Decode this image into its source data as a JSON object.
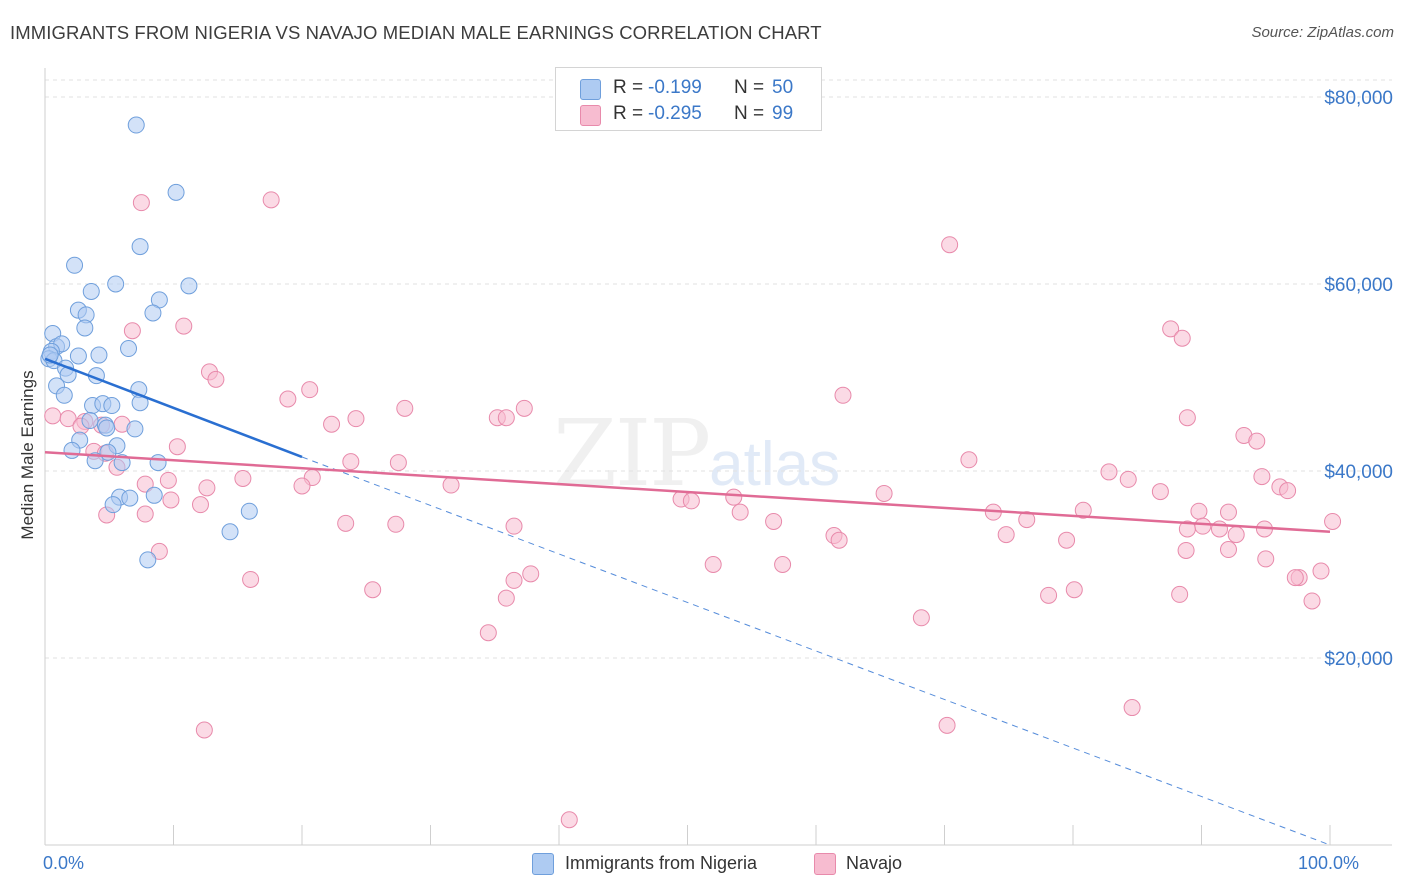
{
  "title": "IMMIGRANTS FROM NIGERIA VS NAVAJO MEDIAN MALE EARNINGS CORRELATION CHART",
  "source": "Source: ZipAtlas.com",
  "watermark": {
    "zip": "ZIP",
    "atlas": "atlas"
  },
  "legend": {
    "rows": [
      {
        "r_label": "R =",
        "r_value": "-0.199",
        "n_label": "N =",
        "n_value": "50"
      },
      {
        "r_label": "R =",
        "r_value": "-0.295",
        "n_label": "N =",
        "n_value": "99"
      }
    ]
  },
  "colors": {
    "nigeria_fill": "#aecbf2",
    "nigeria_stroke": "#6f9fdc",
    "nigeria_line": "#2a6fd1",
    "navajo_fill": "#f7bcd0",
    "navajo_stroke": "#e88aab",
    "navajo_line": "#e06b95",
    "grid": "#e2e2e2",
    "tick_label": "#3b78c8"
  },
  "chart_data": {
    "type": "scatter",
    "xlabel": "",
    "ylabel": "Median Male Earnings",
    "xlim": [
      0,
      100
    ],
    "ylim": [
      0,
      82000
    ],
    "x_tick_labels": [
      {
        "value": 0,
        "label": "0.0%"
      },
      {
        "value": 100,
        "label": "100.0%"
      }
    ],
    "y_ticks": [
      {
        "value": 20000,
        "label": "$20,000"
      },
      {
        "value": 40000,
        "label": "$40,000"
      },
      {
        "value": 60000,
        "label": "$60,000"
      },
      {
        "value": 80000,
        "label": "$80,000"
      }
    ],
    "grid": "horizontal dashed",
    "legend_position": "top-center",
    "series": [
      {
        "name": "Immigrants from Nigeria",
        "color": "#aecbf2",
        "trend": {
          "x0": 0,
          "y0": 52000,
          "x1": 20,
          "y1": 41500,
          "dashed_to_x": 100,
          "dashed_to_y": 0
        },
        "points": [
          [
            7.1,
            77000
          ],
          [
            10.2,
            69800
          ],
          [
            7.4,
            64000
          ],
          [
            2.3,
            62000
          ],
          [
            5.5,
            60000
          ],
          [
            11.2,
            59800
          ],
          [
            3.6,
            59200
          ],
          [
            8.9,
            58300
          ],
          [
            2.6,
            57200
          ],
          [
            3.2,
            56700
          ],
          [
            8.4,
            56900
          ],
          [
            3.1,
            55300
          ],
          [
            0.6,
            54700
          ],
          [
            0.9,
            53300
          ],
          [
            1.3,
            53600
          ],
          [
            6.5,
            53100
          ],
          [
            0.5,
            52800
          ],
          [
            2.6,
            52300
          ],
          [
            4.2,
            52400
          ],
          [
            0.3,
            52000
          ],
          [
            0.7,
            51800
          ],
          [
            1.6,
            51000
          ],
          [
            1.8,
            50300
          ],
          [
            4.0,
            50200
          ],
          [
            0.9,
            49100
          ],
          [
            7.3,
            48700
          ],
          [
            1.5,
            48100
          ],
          [
            7.4,
            47300
          ],
          [
            3.7,
            47000
          ],
          [
            4.5,
            47200
          ],
          [
            5.2,
            47000
          ],
          [
            3.5,
            45400
          ],
          [
            4.7,
            44900
          ],
          [
            7.0,
            44500
          ],
          [
            4.8,
            44600
          ],
          [
            2.7,
            43300
          ],
          [
            5.6,
            42700
          ],
          [
            2.1,
            42200
          ],
          [
            4.9,
            42000
          ],
          [
            3.9,
            41100
          ],
          [
            6.0,
            40900
          ],
          [
            8.8,
            40900
          ],
          [
            5.8,
            37200
          ],
          [
            8.5,
            37400
          ],
          [
            6.6,
            37100
          ],
          [
            5.3,
            36400
          ],
          [
            15.9,
            35700
          ],
          [
            14.4,
            33500
          ],
          [
            8.0,
            30500
          ],
          [
            0.4,
            52400
          ]
        ]
      },
      {
        "name": "Navajo",
        "color": "#f7bcd0",
        "trend": {
          "x0": 0,
          "y0": 42000,
          "x1": 100,
          "y1": 33500
        },
        "points": [
          [
            7.5,
            68700
          ],
          [
            17.6,
            69000
          ],
          [
            70.4,
            64200
          ],
          [
            10.8,
            55500
          ],
          [
            6.8,
            55000
          ],
          [
            87.6,
            55200
          ],
          [
            88.5,
            54200
          ],
          [
            12.8,
            50600
          ],
          [
            13.3,
            49800
          ],
          [
            20.6,
            48700
          ],
          [
            18.9,
            47700
          ],
          [
            62.1,
            48100
          ],
          [
            28.0,
            46700
          ],
          [
            37.3,
            46700
          ],
          [
            35.2,
            45700
          ],
          [
            0.6,
            45900
          ],
          [
            1.8,
            45600
          ],
          [
            3.1,
            45300
          ],
          [
            6.0,
            45000
          ],
          [
            22.3,
            45000
          ],
          [
            24.2,
            45600
          ],
          [
            35.9,
            45700
          ],
          [
            88.9,
            45700
          ],
          [
            2.8,
            44800
          ],
          [
            4.4,
            44900
          ],
          [
            93.3,
            43800
          ],
          [
            94.3,
            43200
          ],
          [
            10.3,
            42600
          ],
          [
            3.8,
            42100
          ],
          [
            4.7,
            41900
          ],
          [
            23.8,
            41000
          ],
          [
            27.5,
            40900
          ],
          [
            71.9,
            41200
          ],
          [
            5.6,
            40400
          ],
          [
            82.8,
            39900
          ],
          [
            94.7,
            39400
          ],
          [
            20.8,
            39300
          ],
          [
            15.4,
            39200
          ],
          [
            9.6,
            39000
          ],
          [
            84.3,
            39100
          ],
          [
            7.8,
            38600
          ],
          [
            31.6,
            38500
          ],
          [
            12.6,
            38200
          ],
          [
            20.0,
            38400
          ],
          [
            96.1,
            38300
          ],
          [
            96.7,
            37900
          ],
          [
            86.8,
            37800
          ],
          [
            53.6,
            37200
          ],
          [
            49.5,
            37000
          ],
          [
            50.3,
            36800
          ],
          [
            9.8,
            36900
          ],
          [
            12.1,
            36400
          ],
          [
            65.3,
            37600
          ],
          [
            89.8,
            35700
          ],
          [
            80.8,
            35800
          ],
          [
            92.1,
            35600
          ],
          [
            73.8,
            35600
          ],
          [
            54.1,
            35600
          ],
          [
            4.8,
            35300
          ],
          [
            7.8,
            35400
          ],
          [
            56.7,
            34600
          ],
          [
            76.4,
            34800
          ],
          [
            90.1,
            34100
          ],
          [
            23.4,
            34400
          ],
          [
            27.3,
            34300
          ],
          [
            36.5,
            34100
          ],
          [
            91.4,
            33800
          ],
          [
            94.9,
            33800
          ],
          [
            100.2,
            34600
          ],
          [
            74.8,
            33200
          ],
          [
            61.4,
            33100
          ],
          [
            61.8,
            32600
          ],
          [
            79.5,
            32600
          ],
          [
            88.9,
            33800
          ],
          [
            92.7,
            33200
          ],
          [
            92.1,
            31600
          ],
          [
            88.8,
            31500
          ],
          [
            8.9,
            31400
          ],
          [
            95.0,
            30600
          ],
          [
            52.0,
            30000
          ],
          [
            57.4,
            30000
          ],
          [
            37.8,
            29000
          ],
          [
            97.6,
            28600
          ],
          [
            99.3,
            29300
          ],
          [
            16.0,
            28400
          ],
          [
            36.5,
            28300
          ],
          [
            25.5,
            27300
          ],
          [
            78.1,
            26700
          ],
          [
            80.1,
            27300
          ],
          [
            88.3,
            26800
          ],
          [
            97.3,
            28600
          ],
          [
            98.6,
            26100
          ],
          [
            35.9,
            26400
          ],
          [
            68.2,
            24300
          ],
          [
            34.5,
            22700
          ],
          [
            84.6,
            14700
          ],
          [
            12.4,
            12300
          ],
          [
            70.2,
            12800
          ],
          [
            40.8,
            2700
          ]
        ]
      }
    ]
  },
  "bottom_legend": [
    {
      "label": "Immigrants from Nigeria"
    },
    {
      "label": "Navajo"
    }
  ]
}
